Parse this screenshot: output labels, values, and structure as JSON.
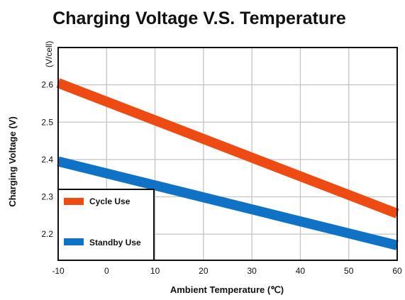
{
  "chart_data": {
    "type": "line",
    "title": "Charging Voltage V.S. Temperature",
    "xlabel": "Ambient Temperature (℃)",
    "ylabel": "Charging Voltage (V)",
    "y_unit": "(V/cell)",
    "x_ticks": [
      "-10",
      "0",
      "10",
      "20",
      "30",
      "40",
      "50",
      "60"
    ],
    "y_ticks": [
      "2.2",
      "2.3",
      "2.4",
      "2.5",
      "2.6"
    ],
    "xlim": [
      -10,
      60
    ],
    "ylim": [
      2.13,
      2.7
    ],
    "grid": true,
    "legend_position": "bottom-left",
    "series": [
      {
        "name": "Cycle Use",
        "color": "#ee4b14",
        "x": [
          -10,
          60
        ],
        "y": [
          2.605,
          2.255
        ]
      },
      {
        "name": "Standby Use",
        "color": "#0f72c4",
        "x": [
          -10,
          60
        ],
        "y": [
          2.395,
          2.17
        ]
      }
    ]
  }
}
